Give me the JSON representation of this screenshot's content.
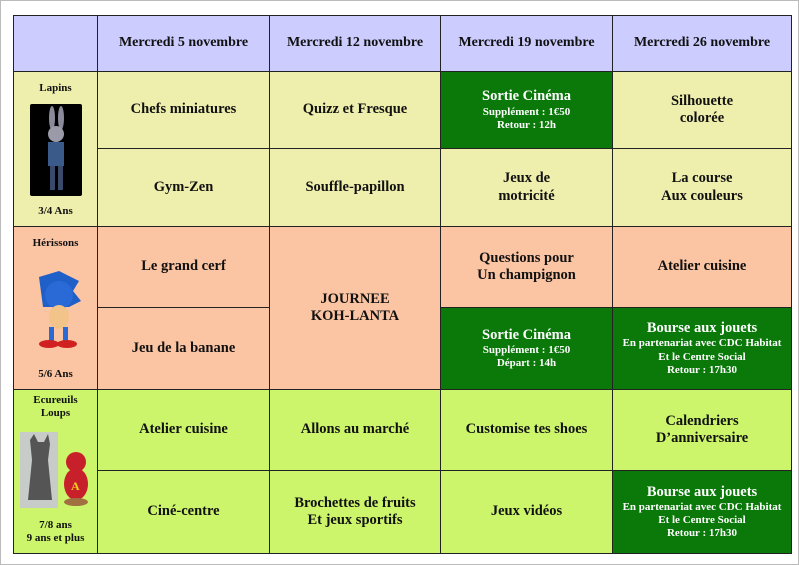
{
  "headers": [
    "Mercredi 5 novembre",
    "Mercredi 12 novembre",
    "Mercredi 19 novembre",
    "Mercredi 26 novembre"
  ],
  "groups": [
    {
      "name": "Lapins",
      "age": "3/4 Ans",
      "image": "rabbit-character"
    },
    {
      "name": "Hérissons",
      "age": "5/6 Ans",
      "image": "hedgehog-character"
    },
    {
      "name": "Ecureuils Loups",
      "age": "7/8 ans",
      "age2": "9 ans et plus",
      "image": "wolf-and-chipmunk"
    }
  ],
  "activities": {
    "r1": [
      "Chefs miniatures",
      "Quizz et Fresque"
    ],
    "r1c3": {
      "title": "Sortie Cinéma",
      "line1": "Supplément : 1€50",
      "line2": "Retour : 12h"
    },
    "r1c4": [
      "Silhouette",
      "colorée"
    ],
    "r2": [
      "Gym-Zen",
      "Souffle-papillon"
    ],
    "r2c3": [
      "Jeux de",
      "motricité"
    ],
    "r2c4": [
      "La course",
      "Aux couleurs"
    ],
    "r3c1": "Le grand cerf",
    "r3c2": [
      "JOURNEE",
      "KOH-LANTA"
    ],
    "r3c3": [
      "Questions pour",
      "Un champignon"
    ],
    "r3c4": "Atelier cuisine",
    "r4c1": "Jeu de la banane",
    "r4c3": {
      "title": "Sortie Cinéma",
      "line1": "Supplément : 1€50",
      "line2": "Départ : 14h"
    },
    "r4c4": {
      "title": "Bourse aux jouets",
      "line1": "En partenariat avec CDC Habitat",
      "line2": "Et le Centre Social",
      "line3": "Retour : 17h30"
    },
    "r5": [
      "Atelier cuisine",
      "Allons au marché",
      "Customise tes shoes"
    ],
    "r5c4": [
      "Calendriers",
      "D’anniversaire"
    ],
    "r6c1": "Ciné-centre",
    "r6c2": [
      "Brochettes de fruits",
      "Et jeux sportifs"
    ],
    "r6c3": "Jeux vidéos",
    "r6c4": {
      "title": "Bourse aux jouets",
      "line1": "En partenariat avec CDC Habitat",
      "line2": "Et le Centre Social",
      "line3": "Retour : 17h30"
    }
  },
  "colors": {
    "header": "#ccccff",
    "lapins": "#efefad",
    "herissons": "#fbc4a3",
    "ecureuils": "#ccf56b",
    "outing": "#0a790a"
  }
}
